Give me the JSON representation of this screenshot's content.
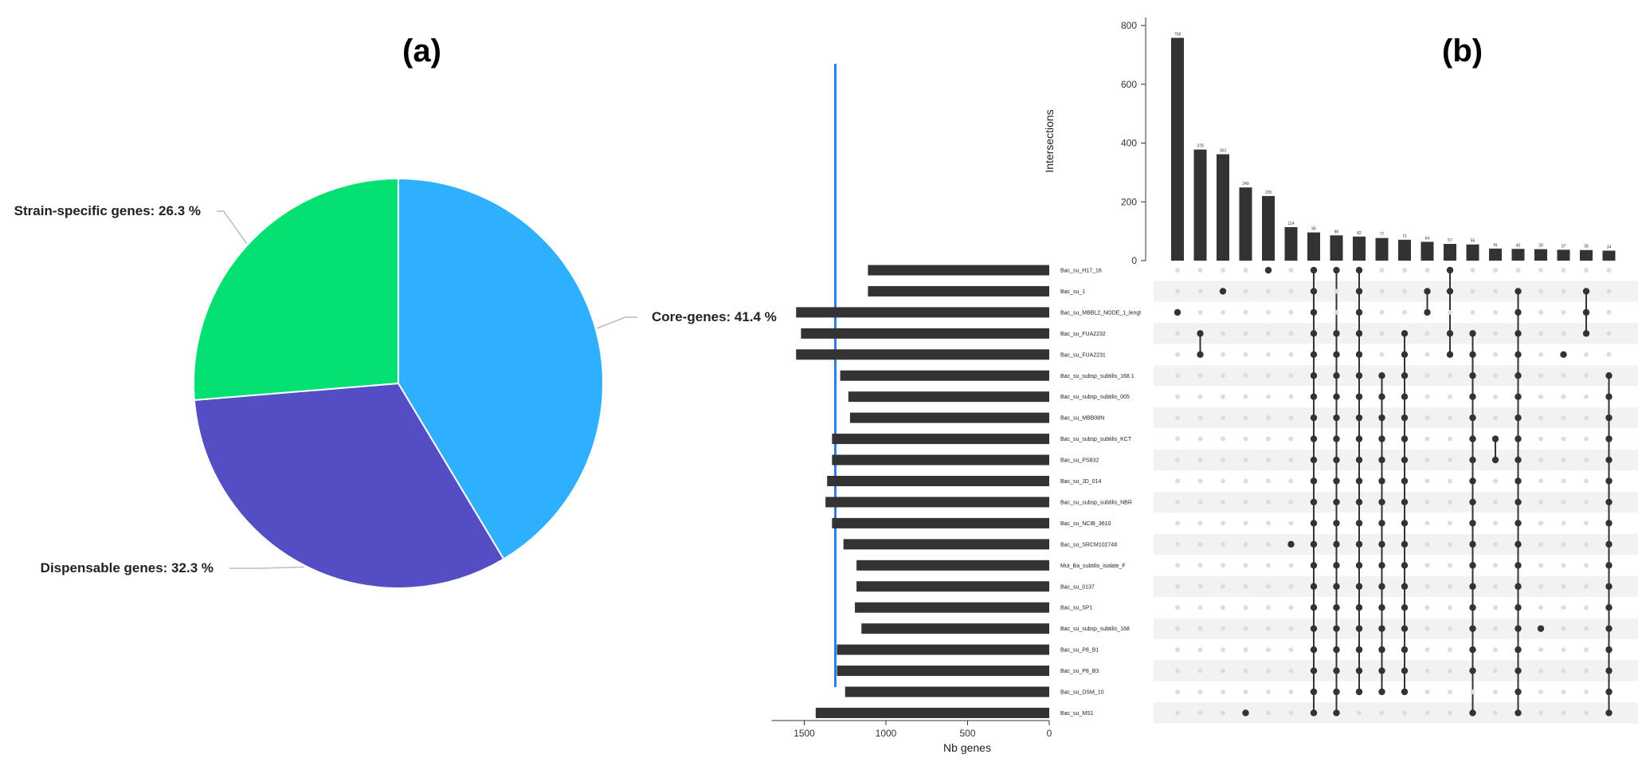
{
  "panels": {
    "a": "(a)",
    "b": "(b)"
  },
  "chart_data": [
    {
      "type": "pie",
      "slices": [
        {
          "label": "Core-genes: 41.4 %",
          "value": 41.4,
          "color": "#2eb0ff"
        },
        {
          "label": "Dispensable genes: 32.3 %",
          "value": 32.3,
          "color": "#544dc3"
        },
        {
          "label": "Strain-specific genes: 26.3 %",
          "value": 26.3,
          "color": "#05e072"
        }
      ]
    },
    {
      "type": "upset",
      "ylabel": "Intersections",
      "xlabel": "Nb genes",
      "ylim": [
        0,
        800
      ],
      "yticks": [
        0,
        200,
        400,
        600,
        800
      ],
      "set_size_xlim": [
        0,
        1700
      ],
      "set_size_ticks": [
        1500,
        1000,
        500,
        0
      ],
      "sets": [
        {
          "name": "Bac_su_H17_16",
          "size": 1110
        },
        {
          "name": "Bac_su_1",
          "size": 1110
        },
        {
          "name": "Bac_su_MBBL2_NODE_1_lengt",
          "size": 1550
        },
        {
          "name": "Bac_su_FUA2232",
          "size": 1520
        },
        {
          "name": "Bac_su_FUA2231",
          "size": 1550
        },
        {
          "name": "Bac_su_subsp_subtilis_168.1",
          "size": 1280
        },
        {
          "name": "Bac_su_subsp_subtilis_005",
          "size": 1230
        },
        {
          "name": "Bac_su_MBB08N",
          "size": 1220
        },
        {
          "name": "Bac_su_subsp_subtilis_KCT",
          "size": 1330
        },
        {
          "name": "Bac_su_PS832",
          "size": 1330
        },
        {
          "name": "Bac_su_JD_014",
          "size": 1360
        },
        {
          "name": "Bac_su_subsp_subtilis_NBR",
          "size": 1370
        },
        {
          "name": "Bac_su_NCIB_3610",
          "size": 1330
        },
        {
          "name": "Bac_su_SRCM102748",
          "size": 1260
        },
        {
          "name": "Mut_Ba_subtilis_isolate_F",
          "size": 1180
        },
        {
          "name": "Bac_su_0137",
          "size": 1180
        },
        {
          "name": "Bac_su_SP1",
          "size": 1190
        },
        {
          "name": "Bac_su_subsp_subtilis_168",
          "size": 1150
        },
        {
          "name": "Bac_su_P8_B1",
          "size": 1300
        },
        {
          "name": "Bac_su_P8_B3",
          "size": 1300
        },
        {
          "name": "Bac_su_DSM_10",
          "size": 1250
        },
        {
          "name": "Bac_su_MS1",
          "size": 1430
        }
      ],
      "intersections": [
        {
          "value": 758,
          "label": "758",
          "sets": [
            2
          ]
        },
        {
          "value": 378,
          "label": "378",
          "sets": [
            3,
            4
          ]
        },
        {
          "value": 362,
          "label": "362",
          "sets": [
            1
          ]
        },
        {
          "value": 249,
          "label": "249",
          "sets": [
            21
          ]
        },
        {
          "value": 220,
          "label": "220",
          "sets": [
            0
          ]
        },
        {
          "value": 114,
          "label": "114",
          "sets": [
            13
          ]
        },
        {
          "value": 96,
          "label": "96",
          "sets": [
            0,
            1,
            2,
            3,
            4,
            5,
            6,
            7,
            8,
            9,
            10,
            11,
            12,
            13,
            14,
            15,
            16,
            17,
            18,
            19,
            20,
            21
          ]
        },
        {
          "value": 86,
          "label": "86",
          "sets": [
            0,
            3,
            4,
            5,
            6,
            7,
            8,
            9,
            10,
            11,
            12,
            13,
            14,
            15,
            16,
            17,
            18,
            19,
            20,
            21
          ]
        },
        {
          "value": 82,
          "label": "82",
          "sets": [
            0,
            1,
            2,
            3,
            4,
            5,
            6,
            7,
            8,
            9,
            10,
            11,
            12,
            13,
            14,
            15,
            16,
            17,
            18,
            19,
            20
          ]
        },
        {
          "value": 77,
          "label": "77",
          "sets": [
            5,
            6,
            7,
            8,
            9,
            10,
            11,
            12,
            13,
            14,
            15,
            16,
            17,
            18,
            19,
            20
          ]
        },
        {
          "value": 71,
          "label": "71",
          "sets": [
            3,
            4,
            5,
            6,
            7,
            8,
            9,
            10,
            11,
            12,
            13,
            14,
            15,
            16,
            17,
            18,
            19,
            20
          ]
        },
        {
          "value": 64,
          "label": "64",
          "sets": [
            1,
            2
          ]
        },
        {
          "value": 57,
          "label": "57",
          "sets": [
            0,
            1,
            3,
            4
          ]
        },
        {
          "value": 55,
          "label": "55",
          "sets": [
            3,
            4,
            5,
            6,
            7,
            8,
            9,
            10,
            11,
            12,
            13,
            14,
            15,
            16,
            17,
            18,
            19,
            21
          ]
        },
        {
          "value": 41,
          "label": "41",
          "sets": [
            8,
            9
          ]
        },
        {
          "value": 40,
          "label": "40",
          "sets": [
            1,
            2,
            3,
            4,
            5,
            6,
            7,
            8,
            9,
            10,
            11,
            12,
            13,
            14,
            15,
            16,
            17,
            18,
            19,
            20,
            21
          ]
        },
        {
          "value": 39,
          "label": "39",
          "sets": [
            17
          ]
        },
        {
          "value": 37,
          "label": "37",
          "sets": [
            4
          ]
        },
        {
          "value": 36,
          "label": "36",
          "sets": [
            1,
            2,
            3
          ]
        },
        {
          "value": 34,
          "label": "34",
          "sets": [
            5,
            6,
            7,
            8,
            9,
            10,
            11,
            12,
            13,
            14,
            15,
            16,
            17,
            18,
            19,
            20,
            21
          ]
        }
      ]
    }
  ]
}
